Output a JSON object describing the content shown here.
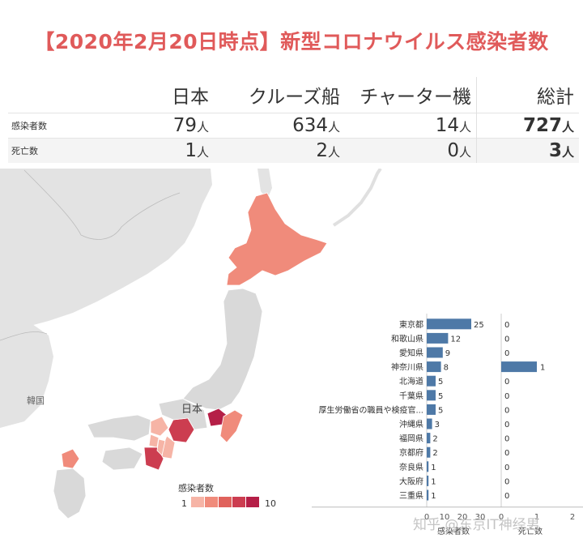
{
  "title": "【2020年2月20日時点】新型コロナウイルス感染者数",
  "summary": {
    "columns": [
      "日本",
      "クルーズ船",
      "チャーター機",
      "総計"
    ],
    "unit": "人",
    "rows": [
      {
        "label": "感染者数",
        "values": [
          "79",
          "634",
          "14",
          "727"
        ]
      },
      {
        "label": "死亡数",
        "values": [
          "1",
          "2",
          "0",
          "3"
        ]
      }
    ]
  },
  "map": {
    "label_japan": "日本",
    "label_korea": "韓国",
    "legend": {
      "title": "感染者数",
      "min": "1",
      "max": "10",
      "colors": [
        "#f6b4a6",
        "#f08b7b",
        "#e0625c",
        "#cc3d50",
        "#b51f47"
      ]
    }
  },
  "chart_data": {
    "type": "bar",
    "orientation": "horizontal",
    "categories": [
      "東京都",
      "和歌山県",
      "愛知県",
      "神奈川県",
      "北海道",
      "千葉県",
      "厚生労働省の職員や検疫官...",
      "沖縄県",
      "福岡県",
      "京都府",
      "奈良県",
      "大阪府",
      "三重県"
    ],
    "series": [
      {
        "name": "感染者数",
        "values": [
          25,
          12,
          9,
          8,
          5,
          5,
          5,
          3,
          2,
          2,
          1,
          1,
          1
        ],
        "xlim": [
          0,
          30
        ],
        "ticks": [
          "0",
          "10",
          "20",
          "30"
        ]
      },
      {
        "name": "死亡数",
        "values": [
          0,
          0,
          0,
          1,
          0,
          0,
          0,
          0,
          0,
          0,
          0,
          0,
          0
        ],
        "xlim": [
          0,
          2
        ],
        "ticks": [
          "0",
          "1",
          "2"
        ]
      }
    ],
    "bar_color": "#4e79a7"
  },
  "watermark": "知乎 @东京IT神经男"
}
